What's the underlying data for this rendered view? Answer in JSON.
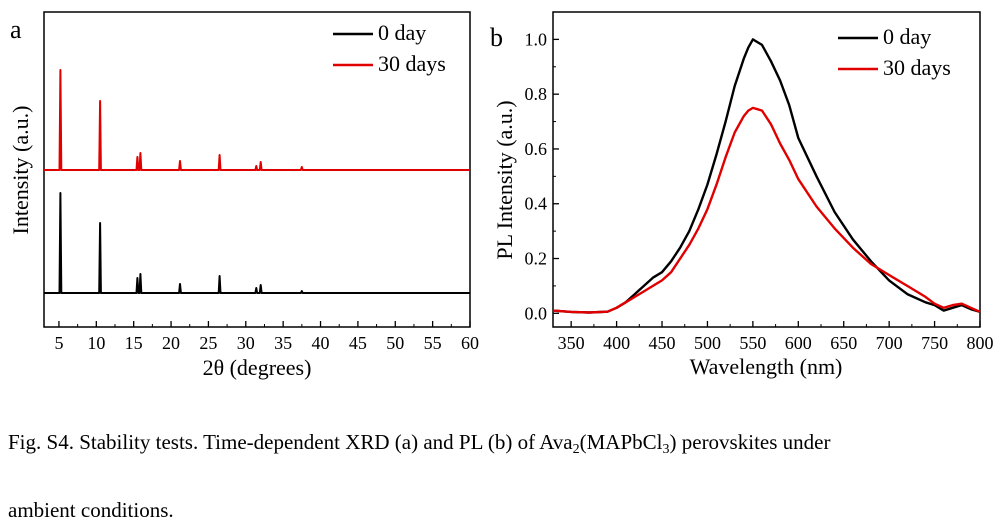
{
  "chart_data": [
    {
      "type": "line",
      "panel_label": "a",
      "xlabel": "2θ (degrees)",
      "ylabel": "Intensity (a.u.)",
      "xlim": [
        3,
        60
      ],
      "xticks": [
        5,
        10,
        15,
        20,
        25,
        30,
        35,
        40,
        45,
        50,
        55,
        60
      ],
      "yticks_shown": false,
      "legend_position": "top-right",
      "series": [
        {
          "name": "30 days",
          "color": "#e00000",
          "peaks": [
            {
              "x": 5.2,
              "intensity": 1.0
            },
            {
              "x": 10.5,
              "intensity": 0.69
            },
            {
              "x": 15.5,
              "intensity": 0.13
            },
            {
              "x": 15.9,
              "intensity": 0.17
            },
            {
              "x": 21.2,
              "intensity": 0.09
            },
            {
              "x": 26.5,
              "intensity": 0.15
            },
            {
              "x": 31.4,
              "intensity": 0.04
            },
            {
              "x": 32.0,
              "intensity": 0.08
            },
            {
              "x": 37.5,
              "intensity": 0.03
            }
          ]
        },
        {
          "name": "0 day",
          "color": "#000000",
          "peaks": [
            {
              "x": 5.2,
              "intensity": 1.0
            },
            {
              "x": 10.5,
              "intensity": 0.7
            },
            {
              "x": 15.5,
              "intensity": 0.15
            },
            {
              "x": 15.9,
              "intensity": 0.19
            },
            {
              "x": 21.2,
              "intensity": 0.09
            },
            {
              "x": 26.5,
              "intensity": 0.17
            },
            {
              "x": 31.4,
              "intensity": 0.05
            },
            {
              "x": 32.0,
              "intensity": 0.08
            },
            {
              "x": 37.5,
              "intensity": 0.02
            }
          ]
        }
      ]
    },
    {
      "type": "line",
      "panel_label": "b",
      "xlabel": "Wavelength (nm)",
      "ylabel": "PL Intensity (a.u.)",
      "xlim": [
        330,
        800
      ],
      "ylim": [
        -0.05,
        1.1
      ],
      "xticks": [
        350,
        400,
        450,
        500,
        550,
        600,
        650,
        700,
        750,
        800
      ],
      "yticks": [
        0.0,
        0.2,
        0.4,
        0.6,
        0.8,
        1.0
      ],
      "legend_position": "top-right",
      "series": [
        {
          "name": "0 day",
          "color": "#000000",
          "x": [
            330,
            350,
            370,
            390,
            400,
            410,
            420,
            430,
            440,
            450,
            460,
            470,
            480,
            490,
            500,
            510,
            520,
            530,
            540,
            545,
            550,
            555,
            560,
            570,
            580,
            590,
            600,
            620,
            640,
            660,
            680,
            700,
            720,
            740,
            750,
            760,
            770,
            780,
            790,
            800
          ],
          "y": [
            0.01,
            0.005,
            0.003,
            0.006,
            0.02,
            0.04,
            0.07,
            0.1,
            0.13,
            0.15,
            0.19,
            0.24,
            0.3,
            0.38,
            0.47,
            0.58,
            0.7,
            0.83,
            0.93,
            0.97,
            1.0,
            0.99,
            0.98,
            0.92,
            0.85,
            0.76,
            0.64,
            0.5,
            0.37,
            0.27,
            0.19,
            0.12,
            0.07,
            0.04,
            0.03,
            0.01,
            0.02,
            0.03,
            0.015,
            0.005
          ]
        },
        {
          "name": "30 days",
          "color": "#e00000",
          "x": [
            330,
            350,
            370,
            390,
            400,
            410,
            420,
            430,
            440,
            450,
            460,
            470,
            480,
            490,
            500,
            510,
            520,
            530,
            540,
            545,
            550,
            555,
            560,
            570,
            580,
            590,
            600,
            620,
            640,
            660,
            680,
            700,
            720,
            740,
            750,
            760,
            770,
            780,
            790,
            800
          ],
          "y": [
            0.01,
            0.005,
            0.003,
            0.006,
            0.02,
            0.04,
            0.06,
            0.08,
            0.1,
            0.12,
            0.15,
            0.2,
            0.25,
            0.31,
            0.38,
            0.47,
            0.57,
            0.66,
            0.72,
            0.74,
            0.75,
            0.745,
            0.74,
            0.69,
            0.62,
            0.56,
            0.49,
            0.39,
            0.31,
            0.24,
            0.18,
            0.14,
            0.1,
            0.06,
            0.035,
            0.02,
            0.03,
            0.035,
            0.02,
            0.005
          ]
        }
      ]
    }
  ],
  "caption": {
    "line1_prefix": "Fig. S4. Stability tests. Time-dependent XRD (a) and PL (b) of Ava",
    "sub1": "2",
    "line1_middle": "(MAPbCl",
    "sub2": "3",
    "line1_suffix": ") perovskites under",
    "line2": "ambient conditions."
  }
}
